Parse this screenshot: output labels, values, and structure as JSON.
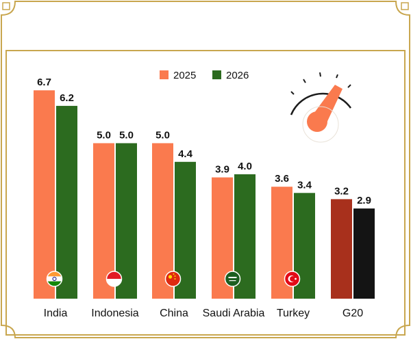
{
  "chart_data": {
    "type": "bar",
    "title": "",
    "xlabel": "",
    "ylabel": "",
    "ylim": [
      0,
      7.5
    ],
    "grid": false,
    "legend_position": "top-center",
    "categories": [
      "India",
      "Indonesia",
      "China",
      "Saudi Arabia",
      "Turkey",
      "G20"
    ],
    "series": [
      {
        "name": "2025",
        "values": [
          6.7,
          5.0,
          5.0,
          3.9,
          3.6,
          3.2
        ]
      },
      {
        "name": "2026",
        "values": [
          6.2,
          5.0,
          4.4,
          4.0,
          3.4,
          2.9
        ]
      }
    ],
    "value_labels": [
      [
        "6.7",
        "6.2"
      ],
      [
        "5.0",
        "5.0"
      ],
      [
        "5.0",
        "4.4"
      ],
      [
        "3.9",
        "4.0"
      ],
      [
        "3.6",
        "3.4"
      ],
      [
        "3.2",
        "2.9"
      ]
    ],
    "flags": [
      "india-flag-icon",
      "indonesia-flag-icon",
      "china-flag-icon",
      "saudi-arabia-flag-icon",
      "turkey-flag-icon",
      null
    ]
  },
  "colors": {
    "series_2025": "#fa7a4e",
    "series_2026": "#2c6b1f",
    "g20_2025": "#a8301c",
    "g20_2026": "#141414",
    "frame": "#c8a64e",
    "text": "#111111"
  }
}
